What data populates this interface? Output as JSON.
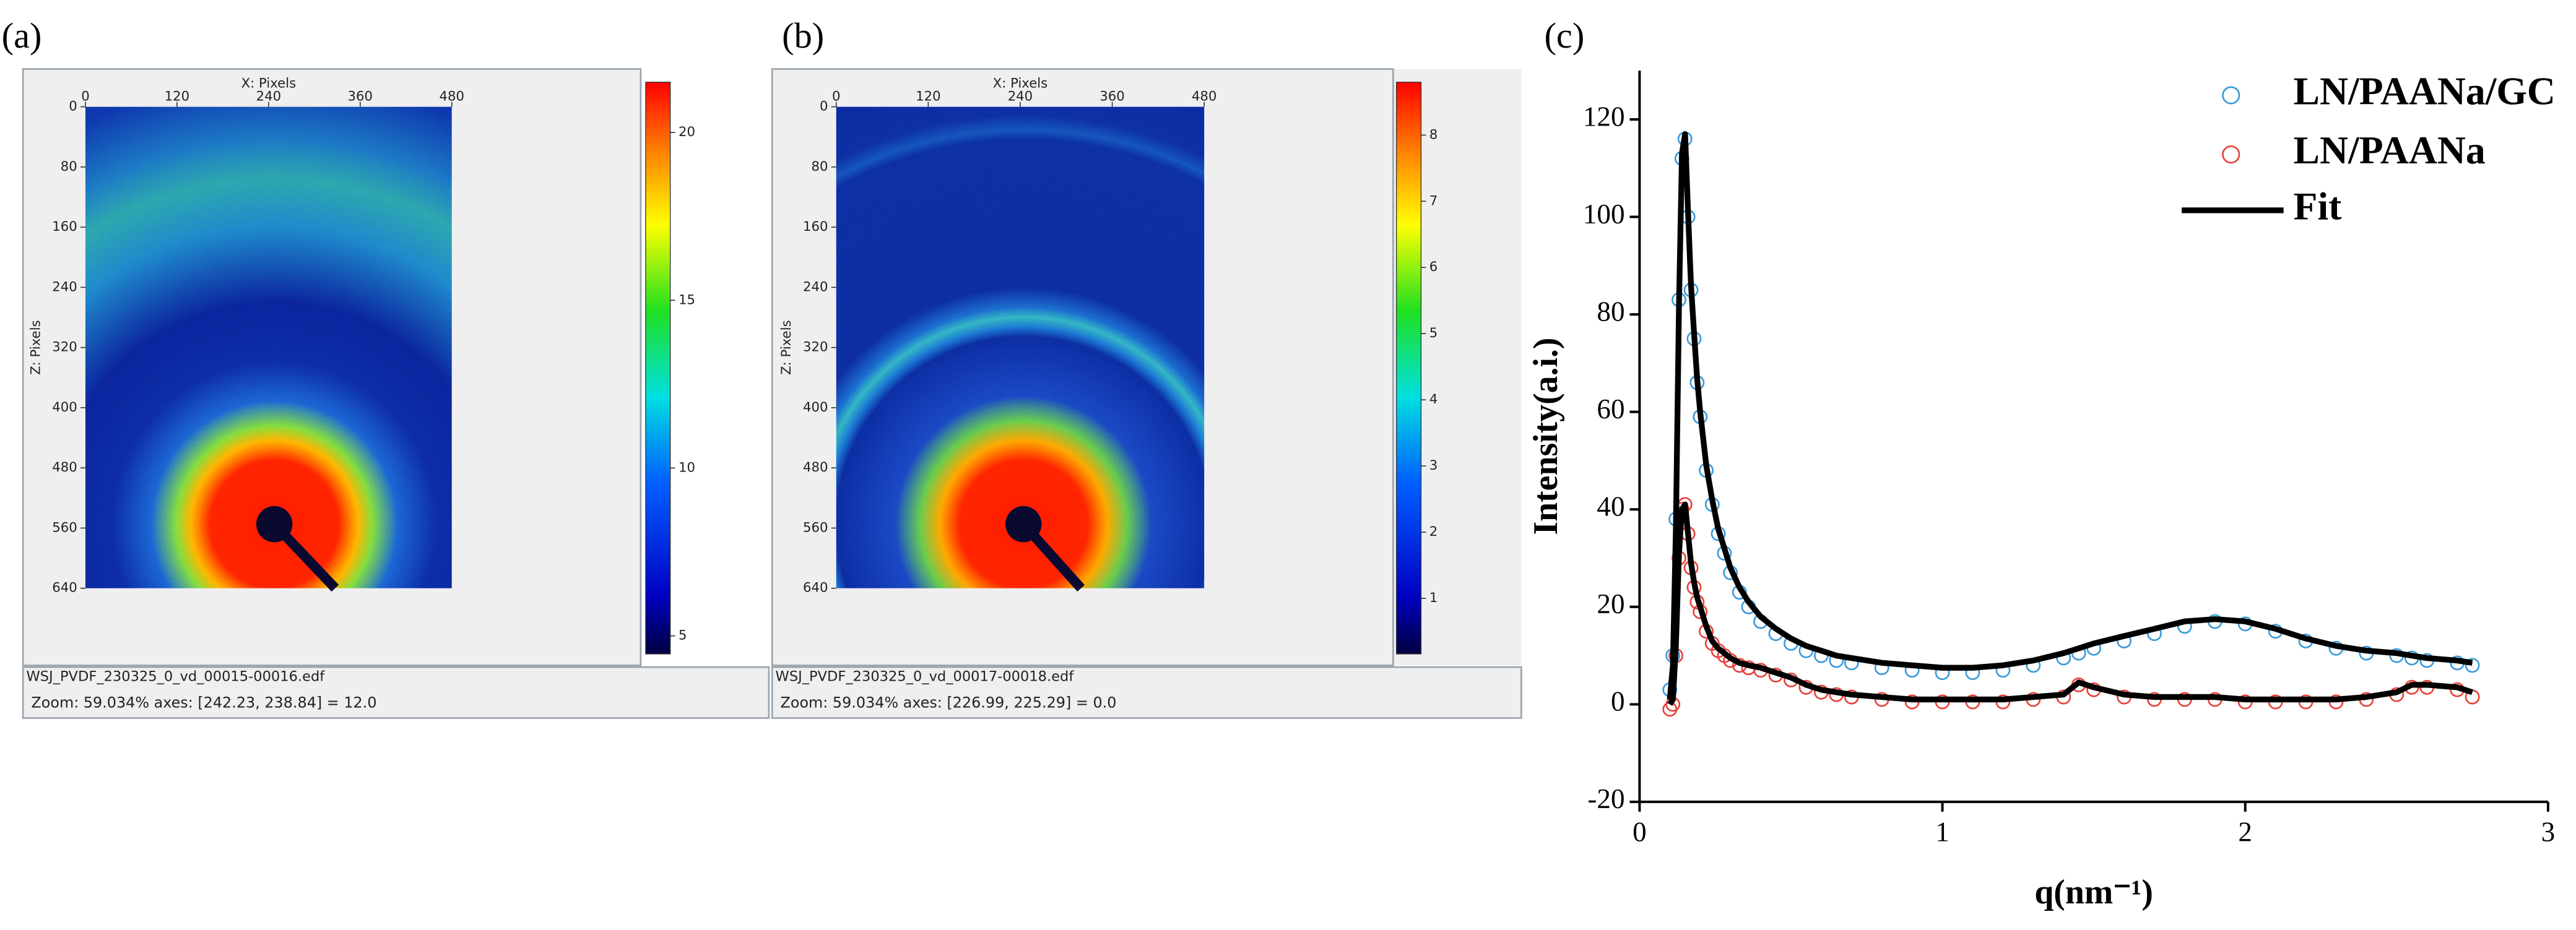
{
  "panels": [
    {
      "label": "(a)",
      "x_axis_label": "X: Pixels",
      "z_axis_label": "Z: Pixels",
      "xlim": [
        0,
        480
      ],
      "xticks": [
        0,
        120,
        240,
        360,
        480
      ],
      "zlim": [
        0,
        640
      ],
      "zticks": [
        0,
        80,
        160,
        240,
        320,
        400,
        480,
        560,
        640
      ],
      "colorbar_lim": [
        4.46,
        21.5
      ],
      "colorbar_ticks": [
        5,
        10,
        15,
        20
      ],
      "filename": "WSJ_PVDF_230325_0_vd_00015-00016.edf",
      "status": "Zoom: 59.034%   axes: [242.23, 238.84] = 12.0"
    },
    {
      "label": "(b)",
      "x_axis_label": "X: Pixels",
      "z_axis_label": "Z: Pixels",
      "xlim": [
        0,
        480
      ],
      "xticks": [
        0,
        120,
        240,
        360,
        480
      ],
      "zlim": [
        0,
        640
      ],
      "zticks": [
        0,
        80,
        160,
        240,
        320,
        400,
        480,
        560,
        640
      ],
      "colorbar_lim": [
        0.16,
        8.8
      ],
      "colorbar_ticks": [
        1,
        2,
        3,
        4,
        5,
        6,
        7,
        8
      ],
      "filename": "WSJ_PVDF_230325_0_vd_00017-00018.edf",
      "status": "Zoom: 59.034%   axes: [226.99, 225.29] = 0.0"
    }
  ],
  "chart_data": {
    "type": "scatter",
    "label": "(c)",
    "x_label": "q(nm⁻¹)",
    "y_label": "Intensity(a.i.)",
    "xlim": [
      0,
      3
    ],
    "xticks": [
      0,
      1,
      2,
      3
    ],
    "ylim": [
      -20,
      130
    ],
    "yticks": [
      -20,
      0,
      20,
      40,
      60,
      80,
      100,
      120
    ],
    "legend": "upper right",
    "fit_name": "Fit",
    "fit_color": "#000000",
    "x": [
      0.1,
      0.11,
      0.12,
      0.13,
      0.14,
      0.15,
      0.16,
      0.17,
      0.18,
      0.19,
      0.2,
      0.22,
      0.24,
      0.26,
      0.28,
      0.3,
      0.33,
      0.36,
      0.4,
      0.45,
      0.5,
      0.55,
      0.6,
      0.65,
      0.7,
      0.8,
      0.9,
      1.0,
      1.1,
      1.2,
      1.3,
      1.4,
      1.45,
      1.5,
      1.6,
      1.7,
      1.8,
      1.9,
      2.0,
      2.1,
      2.2,
      2.3,
      2.4,
      2.5,
      2.55,
      2.6,
      2.7,
      2.75
    ],
    "series": [
      {
        "name": "LN/PAANa/GC",
        "color": "#3a9ad9",
        "values": [
          3,
          10,
          38,
          83,
          112,
          116,
          100,
          85,
          75,
          66,
          59,
          48,
          41,
          35,
          31,
          27,
          23,
          20,
          17,
          14.5,
          12.5,
          11,
          10,
          9,
          8.5,
          7.5,
          7,
          6.5,
          6.5,
          7,
          8,
          9.5,
          10.5,
          11.5,
          13,
          14.5,
          16,
          17,
          16.5,
          15,
          13,
          11.5,
          10.5,
          10,
          9.5,
          9,
          8.5,
          8
        ],
        "fit": [
          1,
          8,
          36,
          82,
          113,
          117,
          101,
          86,
          76,
          67,
          60,
          49,
          42,
          36,
          32,
          28,
          24,
          21,
          18,
          15.5,
          13.5,
          12,
          11,
          10,
          9.5,
          8.5,
          8,
          7.5,
          7.5,
          8,
          9,
          10.5,
          11.5,
          12.5,
          14,
          15.5,
          17,
          17.5,
          17,
          15.5,
          13.5,
          12,
          11,
          10.5,
          10,
          9.5,
          9,
          8.5
        ]
      },
      {
        "name": "LN/PAANa",
        "color": "#e8413a",
        "values": [
          -1,
          0,
          10,
          30,
          40,
          41,
          35,
          28,
          24,
          21,
          19,
          15,
          12.5,
          11,
          10,
          9,
          8,
          7.5,
          7,
          6,
          5,
          3.5,
          2.5,
          2,
          1.5,
          1,
          0.5,
          0.5,
          0.5,
          0.5,
          1,
          1.5,
          4,
          3,
          1.5,
          1,
          1,
          1,
          0.5,
          0.5,
          0.5,
          0.5,
          1,
          2,
          3.5,
          3.5,
          3,
          1.5
        ],
        "fit": [
          0,
          1,
          12,
          31,
          40,
          41,
          35,
          29,
          25,
          22,
          20,
          16,
          13,
          11.5,
          10.5,
          9.5,
          8.5,
          8,
          7.5,
          6.5,
          5.5,
          4,
          3,
          2.5,
          2,
          1.5,
          1,
          1,
          1,
          1,
          1.5,
          2,
          4.5,
          3.5,
          2,
          1.5,
          1.5,
          1.5,
          1,
          1,
          1,
          1,
          1.5,
          2.5,
          4,
          4,
          3.5,
          2.5
        ]
      }
    ]
  }
}
